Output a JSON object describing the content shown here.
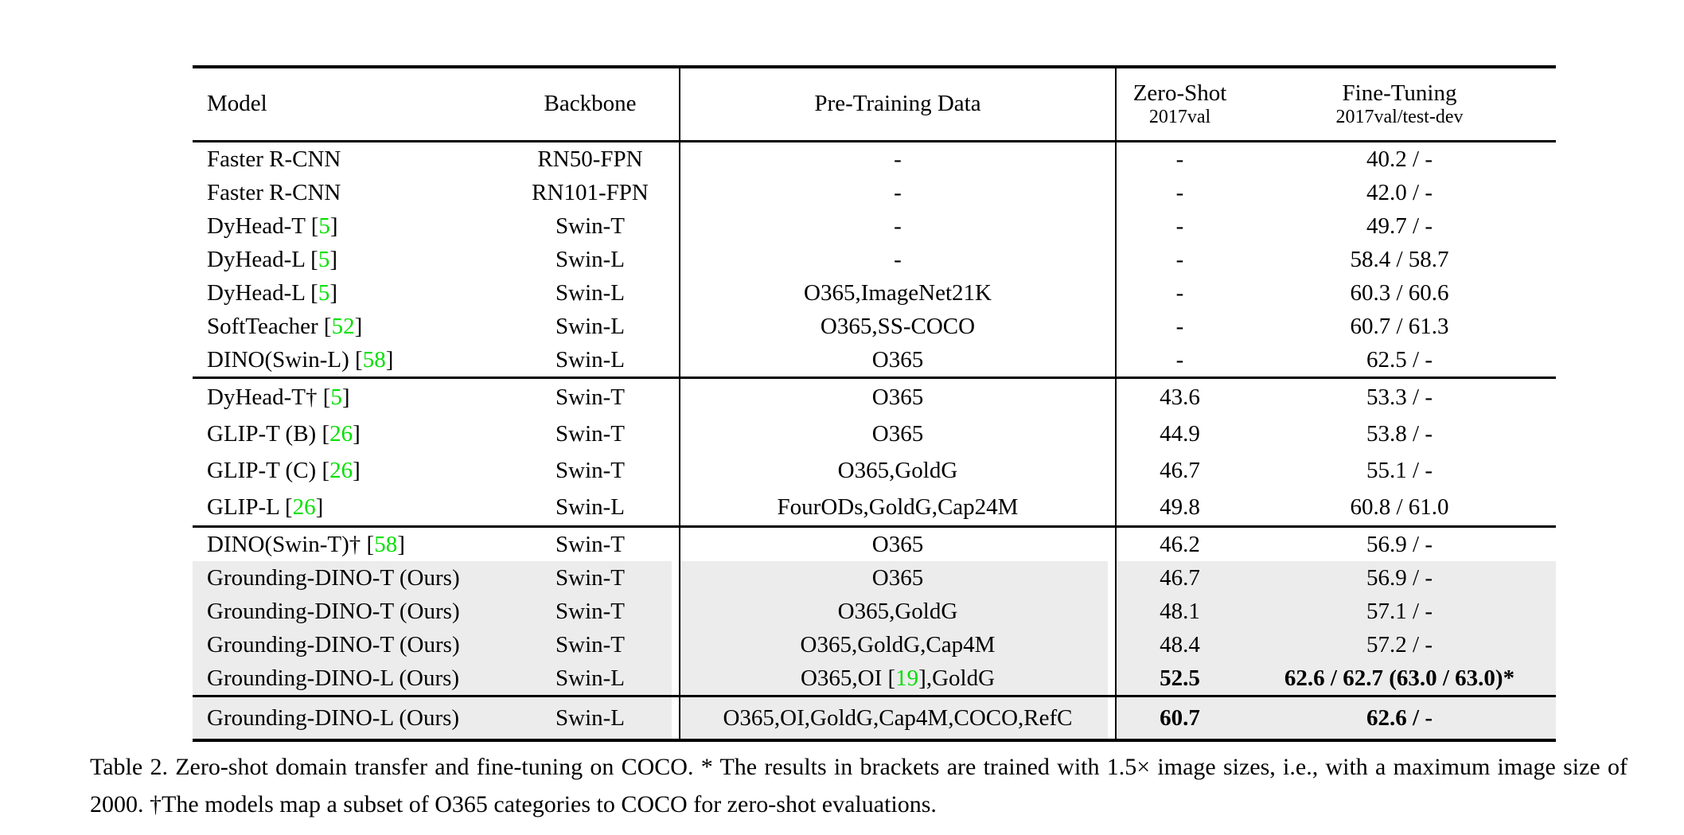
{
  "colors": {
    "citation_green": "#00e000",
    "row_highlight": "#ececec",
    "rule_black": "#000000"
  },
  "table": {
    "headers": {
      "model": "Model",
      "backbone": "Backbone",
      "pretrain": "Pre-Training Data",
      "zero_shot": "Zero-Shot",
      "zero_shot_sub": "2017val",
      "fine_tuning": "Fine-Tuning",
      "fine_tuning_sub": "2017val/test-dev"
    },
    "blocks": [
      {
        "rows": [
          {
            "model": "Faster R-CNN",
            "backbone": "RN50-FPN",
            "pretrain": "-",
            "zero_shot": "-",
            "fine_tuning": "40.2 / -",
            "highlight": false,
            "bold_zs": false,
            "bold_ft": false
          },
          {
            "model": "Faster R-CNN",
            "backbone": "RN101-FPN",
            "pretrain": "-",
            "zero_shot": "-",
            "fine_tuning": "42.0 / -",
            "highlight": false,
            "bold_zs": false,
            "bold_ft": false
          },
          {
            "model": "DyHead-T [[5]]",
            "backbone": "Swin-T",
            "pretrain": "-",
            "zero_shot": "-",
            "fine_tuning": "49.7 / -",
            "highlight": false,
            "bold_zs": false,
            "bold_ft": false
          },
          {
            "model": "DyHead-L [[5]]",
            "backbone": "Swin-L",
            "pretrain": "-",
            "zero_shot": "-",
            "fine_tuning": "58.4 / 58.7",
            "highlight": false,
            "bold_zs": false,
            "bold_ft": false
          },
          {
            "model": "DyHead-L [[5]]",
            "backbone": "Swin-L",
            "pretrain": "O365,ImageNet21K",
            "zero_shot": "-",
            "fine_tuning": "60.3 / 60.6",
            "highlight": false,
            "bold_zs": false,
            "bold_ft": false
          },
          {
            "model": "SoftTeacher [[52]]",
            "backbone": "Swin-L",
            "pretrain": "O365,SS-COCO",
            "zero_shot": "-",
            "fine_tuning": "60.7 / 61.3",
            "highlight": false,
            "bold_zs": false,
            "bold_ft": false
          },
          {
            "model": "DINO(Swin-L) [[58]]",
            "backbone": "Swin-L",
            "pretrain": "O365",
            "zero_shot": "-",
            "fine_tuning": "62.5 / -",
            "highlight": false,
            "bold_zs": false,
            "bold_ft": false
          }
        ]
      },
      {
        "rows": [
          {
            "model": "DyHead-T† [[5]]",
            "backbone": "Swin-T",
            "pretrain": "O365",
            "zero_shot": "43.6",
            "fine_tuning": "53.3 / -",
            "highlight": false,
            "bold_zs": false,
            "bold_ft": false
          },
          {
            "model": "GLIP-T (B) [[26]]",
            "backbone": "Swin-T",
            "pretrain": "O365",
            "zero_shot": "44.9",
            "fine_tuning": "53.8 / -",
            "highlight": false,
            "bold_zs": false,
            "bold_ft": false
          },
          {
            "model": "GLIP-T (C) [[26]]",
            "backbone": "Swin-T",
            "pretrain": "O365,GoldG",
            "zero_shot": "46.7",
            "fine_tuning": "55.1 / -",
            "highlight": false,
            "bold_zs": false,
            "bold_ft": false
          },
          {
            "model": "GLIP-L [[26]]",
            "backbone": "Swin-L",
            "pretrain": "FourODs,GoldG,Cap24M",
            "zero_shot": "49.8",
            "fine_tuning": "60.8 / 61.0",
            "highlight": false,
            "bold_zs": false,
            "bold_ft": false
          }
        ]
      },
      {
        "rows": [
          {
            "model": "DINO(Swin-T)† [[58]]",
            "backbone": "Swin-T",
            "pretrain": "O365",
            "zero_shot": "46.2",
            "fine_tuning": "56.9 / -",
            "highlight": false,
            "bold_zs": false,
            "bold_ft": false
          },
          {
            "model": "Grounding-DINO-T (Ours)",
            "backbone": "Swin-T",
            "pretrain": "O365",
            "zero_shot": "46.7",
            "fine_tuning": "56.9 / -",
            "highlight": true,
            "bold_zs": false,
            "bold_ft": false
          },
          {
            "model": "Grounding-DINO-T (Ours)",
            "backbone": "Swin-T",
            "pretrain": "O365,GoldG",
            "zero_shot": "48.1",
            "fine_tuning": "57.1 / -",
            "highlight": true,
            "bold_zs": false,
            "bold_ft": false
          },
          {
            "model": "Grounding-DINO-T (Ours)",
            "backbone": "Swin-T",
            "pretrain": "O365,GoldG,Cap4M",
            "zero_shot": "48.4",
            "fine_tuning": "57.2 / -",
            "highlight": true,
            "bold_zs": false,
            "bold_ft": false
          },
          {
            "model": "Grounding-DINO-L (Ours)",
            "backbone": "Swin-L",
            "pretrain": "O365,OI [[19]],GoldG",
            "zero_shot": "52.5",
            "fine_tuning": "62.6 / 62.7 (63.0 / 63.0)*",
            "highlight": true,
            "bold_zs": true,
            "bold_ft": true
          }
        ]
      },
      {
        "rows": [
          {
            "model": "Grounding-DINO-L (Ours)",
            "backbone": "Swin-L",
            "pretrain": "O365,OI,GoldG,Cap4M,COCO,RefC",
            "zero_shot": "60.7",
            "fine_tuning": "62.6 / -",
            "highlight": true,
            "bold_zs": true,
            "bold_ft": true
          }
        ]
      }
    ]
  },
  "caption": "Table 2.  Zero-shot domain transfer and fine-tuning on COCO. * The results in brackets are trained with 1.5× image sizes, i.e., with a maximum image size of 2000. †The models map a subset of O365 categories to COCO for zero-shot evaluations."
}
